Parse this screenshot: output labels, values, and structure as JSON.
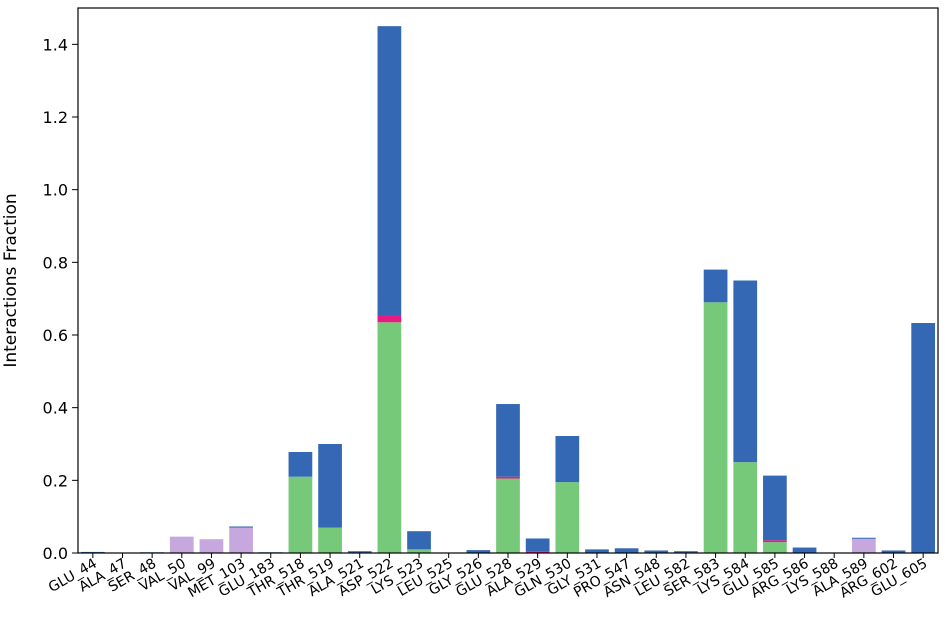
{
  "chart_data": {
    "type": "bar",
    "stacked": true,
    "ylabel": "Interactions Fraction",
    "xlabel": "",
    "title": "",
    "ylim": [
      0,
      1.5
    ],
    "yticks": [
      "0.0",
      "0.2",
      "0.4",
      "0.6",
      "0.8",
      "1.0",
      "1.2",
      "1.4"
    ],
    "grid": false,
    "categories": [
      "GLU_44",
      "ALA_47",
      "SER_48",
      "VAL_50",
      "VAL_99",
      "MET_103",
      "GLU_183",
      "THR_518",
      "THR_519",
      "ALA_521",
      "ASP_522",
      "LYS_523",
      "LEU_525",
      "GLY_526",
      "GLU_528",
      "ALA_529",
      "GLN_530",
      "GLY_531",
      "PRO_547",
      "ASN_548",
      "LEU_582",
      "SER_583",
      "LYS_584",
      "GLU_585",
      "ARG_586",
      "LYS_588",
      "ALA_589",
      "ARG_602",
      "GLU_605"
    ],
    "series": [
      {
        "color": "#77c97a",
        "values": [
          0,
          0,
          0,
          0,
          0,
          0,
          0,
          0.21,
          0.07,
          0,
          0.635,
          0.01,
          0,
          0,
          0.205,
          0,
          0.195,
          0,
          0,
          0,
          0,
          0.69,
          0.25,
          0.03,
          0,
          0,
          0,
          0,
          0
        ]
      },
      {
        "color": "#e8197f",
        "values": [
          0,
          0,
          0,
          0,
          0,
          0,
          0,
          0,
          0,
          0,
          0.02,
          0,
          0,
          0,
          0.005,
          0.005,
          0,
          0,
          0,
          0,
          0,
          0,
          0,
          0.005,
          0,
          0,
          0,
          0,
          0
        ]
      },
      {
        "color": "#c6a8de",
        "values": [
          0,
          0,
          0,
          0.045,
          0.038,
          0.07,
          0,
          0,
          0,
          0,
          0,
          0,
          0,
          0,
          0,
          0,
          0,
          0,
          0,
          0,
          0,
          0,
          0,
          0,
          0,
          0,
          0.04,
          0,
          0
        ]
      },
      {
        "color": "#3568b4",
        "values": [
          0.003,
          0,
          0.002,
          0,
          0,
          0.003,
          0.002,
          0.068,
          0.23,
          0.005,
          0.795,
          0.05,
          0,
          0.008,
          0.2,
          0.035,
          0.127,
          0.01,
          0.013,
          0.007,
          0.005,
          0.09,
          0.5,
          0.178,
          0.015,
          0,
          0.002,
          0.007,
          0.633
        ]
      }
    ]
  }
}
